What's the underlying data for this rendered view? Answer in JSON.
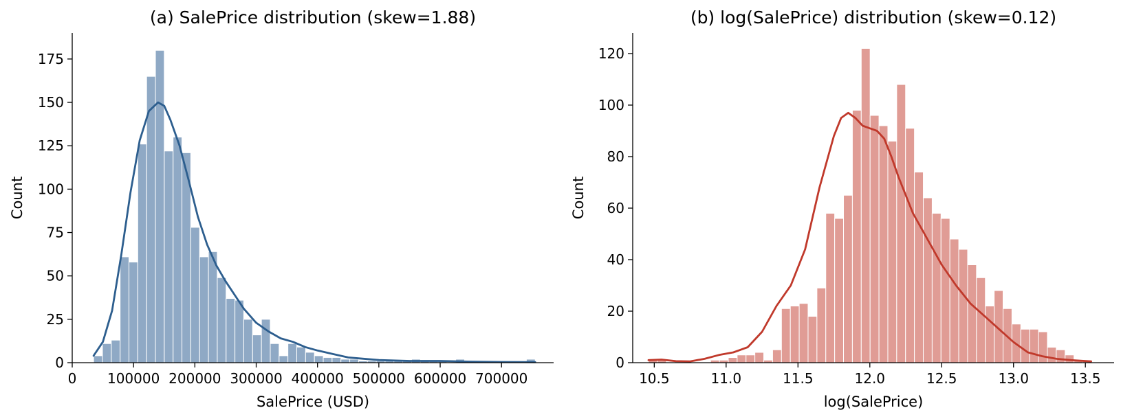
{
  "chart_data": [
    {
      "type": "bar",
      "subtype": "histogram-with-kde",
      "title": "(a) SalePrice distribution (skew=1.88)",
      "xlabel": "SalePrice (USD)",
      "ylabel": "Count",
      "xlim": [
        0,
        785000
      ],
      "ylim": [
        0,
        190
      ],
      "xticks": [
        0,
        100000,
        200000,
        300000,
        400000,
        500000,
        600000,
        700000
      ],
      "xtick_labels": [
        "0",
        "100000",
        "200000",
        "300000",
        "400000",
        "500000",
        "600000",
        "700000"
      ],
      "yticks": [
        0,
        25,
        50,
        75,
        100,
        125,
        150,
        175
      ],
      "ytick_labels": [
        "0",
        "25",
        "50",
        "75",
        "100",
        "125",
        "150",
        "175"
      ],
      "grid": false,
      "bar_color": "#8fa9c5",
      "line_color": "#2d5e8e",
      "bins": {
        "start": 34900,
        "width": 14402,
        "counts": [
          4,
          11,
          13,
          61,
          58,
          126,
          165,
          180,
          122,
          130,
          121,
          78,
          61,
          64,
          49,
          37,
          36,
          25,
          16,
          25,
          11,
          4,
          11,
          9,
          6,
          4,
          3,
          3,
          2,
          2,
          1,
          1,
          1,
          1,
          1,
          1,
          2,
          1,
          1,
          1,
          0,
          2,
          1,
          1,
          1,
          1,
          1,
          1,
          1,
          2
        ]
      },
      "kde": {
        "x": [
          34900,
          50000,
          65000,
          80000,
          95000,
          110000,
          125000,
          140000,
          150000,
          160000,
          175000,
          190000,
          205000,
          220000,
          235000,
          250000,
          265000,
          280000,
          300000,
          320000,
          340000,
          360000,
          380000,
          400000,
          425000,
          450000,
          500000,
          550000,
          600000,
          650000,
          700000,
          755000
        ],
        "y": [
          4,
          12,
          30,
          62,
          98,
          128,
          145,
          150,
          148,
          140,
          125,
          105,
          84,
          68,
          56,
          47,
          39,
          31,
          23,
          18,
          14,
          12,
          9,
          7,
          5,
          3,
          1.5,
          1,
          1,
          0.6,
          0.4,
          0.3
        ]
      }
    },
    {
      "type": "bar",
      "subtype": "histogram-with-kde",
      "title": "(b) log(SalePrice) distribution (skew=0.12)",
      "xlabel": "log(SalePrice)",
      "ylabel": "Count",
      "xlim": [
        10.35,
        13.7
      ],
      "ylim": [
        0,
        128
      ],
      "xticks": [
        10.5,
        11.0,
        11.5,
        12.0,
        12.5,
        13.0,
        13.5
      ],
      "xtick_labels": [
        "10.5",
        "11.0",
        "11.5",
        "12.0",
        "12.5",
        "13.0",
        "13.5"
      ],
      "yticks": [
        0,
        20,
        40,
        60,
        80,
        100,
        120
      ],
      "ytick_labels": [
        "0",
        "20",
        "40",
        "60",
        "80",
        "100",
        "120"
      ],
      "grid": false,
      "bar_color": "#e09c95",
      "line_color": "#c0392b",
      "bins": {
        "start": 10.46,
        "width": 0.06168,
        "counts": [
          1,
          1,
          0,
          0,
          0,
          0,
          0,
          1,
          1,
          2,
          3,
          3,
          4,
          1,
          5,
          21,
          22,
          23,
          18,
          29,
          58,
          56,
          65,
          98,
          122,
          96,
          92,
          86,
          108,
          91,
          74,
          64,
          58,
          56,
          48,
          44,
          38,
          33,
          22,
          28,
          21,
          15,
          13,
          13,
          12,
          6,
          5,
          3,
          1,
          1
        ]
      },
      "kde": {
        "x": [
          10.46,
          10.55,
          10.65,
          10.75,
          10.85,
          10.95,
          11.05,
          11.15,
          11.25,
          11.35,
          11.45,
          11.55,
          11.65,
          11.75,
          11.8,
          11.85,
          11.9,
          11.95,
          12.0,
          12.05,
          12.1,
          12.15,
          12.2,
          12.3,
          12.4,
          12.5,
          12.6,
          12.7,
          12.8,
          12.9,
          13.0,
          13.1,
          13.2,
          13.3,
          13.4,
          13.54
        ],
        "y": [
          1,
          1.2,
          0.6,
          0.5,
          1.5,
          3,
          4,
          6,
          12,
          22,
          30,
          44,
          68,
          88,
          95,
          97,
          95,
          92,
          91,
          90,
          87,
          80,
          72,
          58,
          48,
          38,
          30,
          23,
          18,
          13,
          8,
          4,
          2.5,
          1.5,
          1,
          0.5
        ]
      }
    }
  ]
}
